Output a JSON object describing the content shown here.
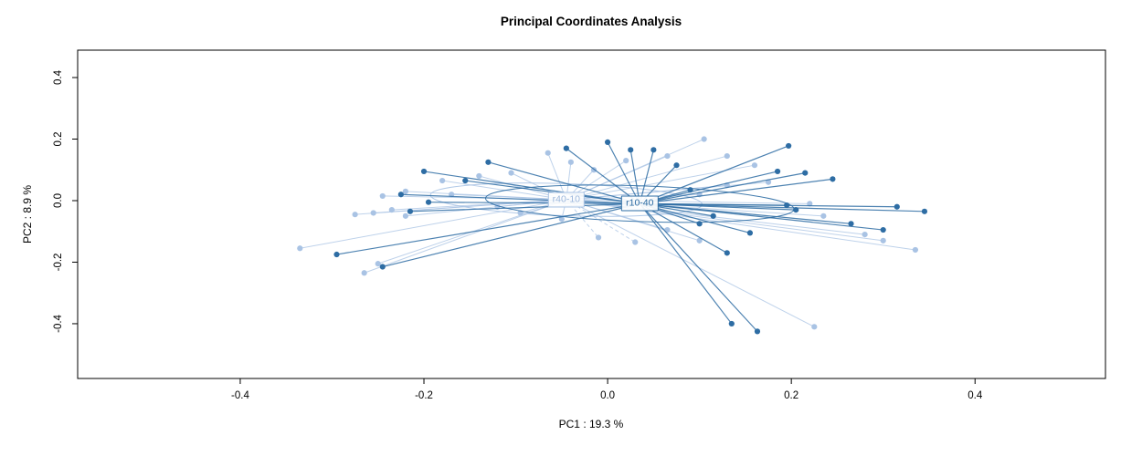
{
  "title": "Principal Coordinates Analysis",
  "chart_data": {
    "type": "scatter",
    "title": "Principal Coordinates Analysis",
    "xlabel": "PC1 :  19.3 %",
    "ylabel": "PC2 :  8.9 %",
    "xlim": [
      -0.577,
      0.542
    ],
    "ylim": [
      -0.578,
      0.489
    ],
    "grid": false,
    "legend": "none",
    "x_ticks": {
      "values": [
        -0.4,
        -0.2,
        0.0,
        0.2,
        0.4
      ],
      "labels": [
        "-0.4",
        "-0.2",
        "0.0",
        "0.2",
        "0.4"
      ]
    },
    "y_ticks": {
      "values": [
        -0.4,
        -0.2,
        0.0,
        0.2,
        0.4
      ],
      "labels": [
        "-0.4",
        "-0.2",
        "0.0",
        "0.2",
        "0.4"
      ]
    },
    "groups": [
      {
        "name": "r40-10",
        "color": "#a9c3e4",
        "label_text_color": "#9db8dc",
        "centroid": [
          -0.045,
          0.003
        ],
        "ellipse": {
          "rx": 0.148,
          "ry": 0.052,
          "angle": 2
        },
        "dashed_segments": [
          32,
          33
        ],
        "points": [
          [
            -0.335,
            -0.155
          ],
          [
            -0.265,
            -0.235
          ],
          [
            -0.25,
            -0.205
          ],
          [
            -0.275,
            -0.045
          ],
          [
            -0.255,
            -0.04
          ],
          [
            -0.235,
            -0.03
          ],
          [
            -0.22,
            -0.05
          ],
          [
            -0.245,
            0.015
          ],
          [
            -0.22,
            0.03
          ],
          [
            -0.18,
            0.065
          ],
          [
            -0.17,
            0.02
          ],
          [
            -0.14,
            0.08
          ],
          [
            -0.105,
            0.09
          ],
          [
            -0.065,
            0.155
          ],
          [
            -0.04,
            0.125
          ],
          [
            -0.015,
            0.1
          ],
          [
            0.02,
            0.13
          ],
          [
            0.065,
            0.145
          ],
          [
            0.105,
            0.2
          ],
          [
            0.13,
            0.145
          ],
          [
            0.16,
            0.115
          ],
          [
            0.175,
            0.06
          ],
          [
            0.13,
            0.05
          ],
          [
            0.1,
            0.02
          ],
          [
            0.22,
            -0.01
          ],
          [
            0.235,
            -0.05
          ],
          [
            0.28,
            -0.11
          ],
          [
            0.335,
            -0.16
          ],
          [
            0.3,
            -0.13
          ],
          [
            0.225,
            -0.41
          ],
          [
            0.1,
            -0.13
          ],
          [
            0.065,
            -0.095
          ],
          [
            0.03,
            -0.135
          ],
          [
            -0.01,
            -0.12
          ],
          [
            -0.05,
            -0.06
          ],
          [
            -0.095,
            -0.04
          ],
          [
            -0.12,
            -0.02
          ]
        ]
      },
      {
        "name": "r10-40",
        "color": "#2e6da4",
        "label_text_color": "#2e6da4",
        "centroid": [
          0.035,
          -0.01
        ],
        "ellipse": {
          "rx": 0.168,
          "ry": 0.058,
          "angle": 2
        },
        "dashed_segments": [],
        "points": [
          [
            0.315,
            -0.02
          ],
          [
            0.345,
            -0.035
          ],
          [
            0.3,
            -0.095
          ],
          [
            0.265,
            -0.075
          ],
          [
            0.245,
            0.07
          ],
          [
            0.215,
            0.09
          ],
          [
            0.197,
            0.178
          ],
          [
            0.185,
            0.095
          ],
          [
            0.195,
            -0.015
          ],
          [
            0.205,
            -0.03
          ],
          [
            0.135,
            -0.4
          ],
          [
            0.163,
            -0.425
          ],
          [
            0.13,
            -0.17
          ],
          [
            0.1,
            -0.075
          ],
          [
            0.155,
            -0.105
          ],
          [
            0.0,
            0.19
          ],
          [
            0.025,
            0.165
          ],
          [
            0.05,
            0.165
          ],
          [
            -0.045,
            0.17
          ],
          [
            0.075,
            0.115
          ],
          [
            -0.195,
            -0.005
          ],
          [
            -0.215,
            -0.035
          ],
          [
            -0.225,
            0.02
          ],
          [
            -0.2,
            0.095
          ],
          [
            -0.155,
            0.065
          ],
          [
            -0.245,
            -0.215
          ],
          [
            -0.295,
            -0.175
          ],
          [
            -0.13,
            0.125
          ],
          [
            0.09,
            0.035
          ],
          [
            0.115,
            -0.05
          ]
        ]
      }
    ]
  }
}
